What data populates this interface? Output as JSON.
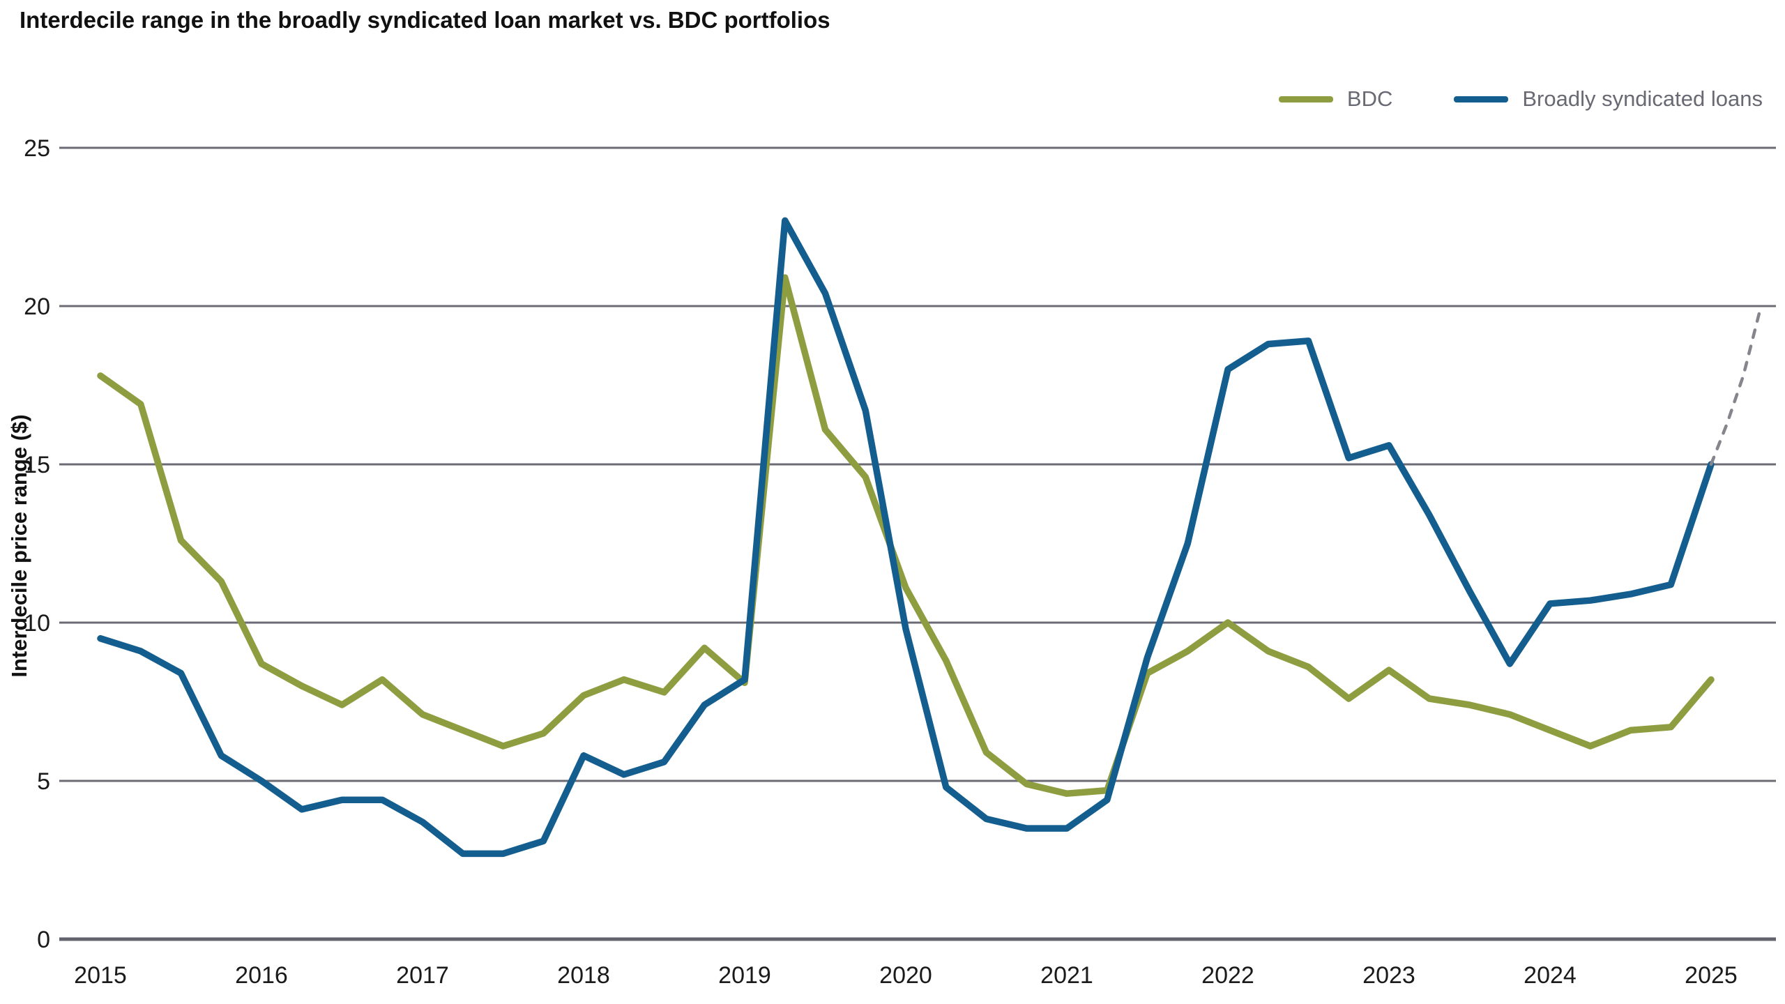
{
  "chart": {
    "title": "Interdecile range in the broadly syndicated loan market vs. BDC portfolios",
    "ylabel": "Interdecile price range ($)",
    "legend": [
      {
        "name": "BDC",
        "color": "#8e9d3f"
      },
      {
        "name": "Broadly syndicated loans",
        "color": "#135e8e"
      }
    ],
    "colors": {
      "bdc": "#8e9d3f",
      "bsl": "#135e8e",
      "dashed_tail": "#85858e",
      "gridline": "#6b6b76",
      "axis_baseline": "#63636d",
      "tick_text": "#1a1a1a",
      "legend_text": "#696973",
      "background": "#ffffff"
    }
  },
  "chart_data": {
    "type": "line",
    "title": "Interdecile range in the broadly syndicated loan market vs. BDC portfolios",
    "xlabel": "",
    "ylabel": "Interdecile price range ($)",
    "x_ticks": [
      2015,
      2016,
      2017,
      2018,
      2019,
      2020,
      2021,
      2022,
      2023,
      2024,
      2025
    ],
    "y_ticks": [
      0,
      5,
      10,
      15,
      20,
      25
    ],
    "ylim": [
      0,
      25
    ],
    "xlim": [
      2014.74,
      2025.4
    ],
    "grid": "horizontal-only",
    "legend_position": "top-right",
    "x_frequency": "quarterly",
    "series": [
      {
        "name": "BDC",
        "color": "#8e9d3f",
        "style": "solid",
        "x": [
          2015.0,
          2015.25,
          2015.5,
          2015.75,
          2016.0,
          2016.25,
          2016.5,
          2016.75,
          2017.0,
          2017.25,
          2017.5,
          2017.75,
          2018.0,
          2018.25,
          2018.5,
          2018.75,
          2019.0,
          2019.25,
          2019.5,
          2019.75,
          2020.0,
          2020.25,
          2020.5,
          2020.75,
          2021.0,
          2021.25,
          2021.5,
          2021.75,
          2022.0,
          2022.25,
          2022.5,
          2022.75,
          2023.0,
          2023.25,
          2023.5,
          2023.75,
          2024.0,
          2024.25,
          2024.5,
          2024.75,
          2025.0
        ],
        "values": [
          17.8,
          16.9,
          12.6,
          11.3,
          8.7,
          8.0,
          7.4,
          8.2,
          7.1,
          6.6,
          6.1,
          6.5,
          7.7,
          8.2,
          7.8,
          9.2,
          8.1,
          20.9,
          16.1,
          14.6,
          11.1,
          8.8,
          5.9,
          4.9,
          4.6,
          4.7,
          8.4,
          9.1,
          10.0,
          9.1,
          8.6,
          7.6,
          8.5,
          7.6,
          7.4,
          7.1,
          6.6,
          6.1,
          6.6,
          6.7,
          8.2
        ]
      },
      {
        "name": "Broadly syndicated loans",
        "color": "#135e8e",
        "style": "solid",
        "x": [
          2015.0,
          2015.25,
          2015.5,
          2015.75,
          2016.0,
          2016.25,
          2016.5,
          2016.75,
          2017.0,
          2017.25,
          2017.5,
          2017.75,
          2018.0,
          2018.25,
          2018.5,
          2018.75,
          2019.0,
          2019.25,
          2019.5,
          2019.75,
          2020.0,
          2020.25,
          2020.5,
          2020.75,
          2021.0,
          2021.25,
          2021.5,
          2021.75,
          2022.0,
          2022.25,
          2022.5,
          2022.75,
          2023.0,
          2023.25,
          2023.5,
          2023.75,
          2024.0,
          2024.25,
          2024.5,
          2024.75,
          2025.0
        ],
        "values": [
          9.5,
          9.1,
          8.4,
          5.8,
          5.0,
          4.1,
          4.4,
          4.4,
          3.7,
          2.7,
          2.7,
          3.1,
          5.8,
          5.2,
          5.6,
          7.4,
          8.2,
          22.7,
          20.4,
          16.7,
          9.8,
          4.8,
          3.8,
          3.5,
          3.5,
          4.4,
          8.9,
          12.5,
          18.0,
          18.8,
          18.9,
          15.2,
          15.6,
          13.4,
          11.0,
          8.7,
          10.6,
          10.7,
          10.9,
          11.2,
          15.0
        ]
      },
      {
        "name": "Broadly syndicated loans (dashed tail)",
        "color": "#85858e",
        "style": "dashed",
        "x": [
          2025.0,
          2025.1,
          2025.2,
          2025.3
        ],
        "values": [
          15.0,
          16.3,
          17.8,
          19.8
        ]
      }
    ]
  }
}
